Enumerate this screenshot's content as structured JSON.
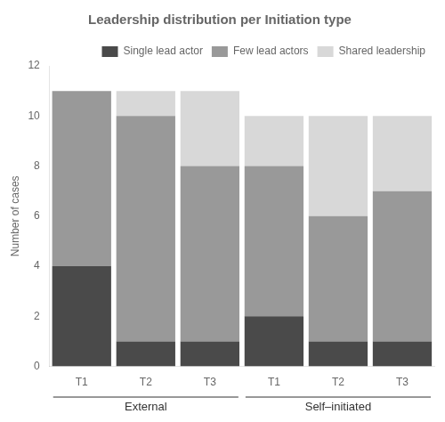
{
  "chart_data": {
    "type": "bar",
    "title": "Leadership distribution per Initiation type",
    "y_label": "Number of cases",
    "categories": [
      "T1",
      "T2",
      "T3",
      "T1",
      "T2",
      "T3"
    ],
    "groups": [
      "External",
      "External",
      "External",
      "Self–initiated",
      "Self–initiated",
      "Self–initiated"
    ],
    "series": [
      {
        "name": "Single lead actor",
        "color": "#4a4a4a",
        "values": [
          4,
          1,
          1,
          2,
          1,
          1
        ]
      },
      {
        "name": "Few lead actors",
        "color": "#999999",
        "values": [
          7,
          9,
          7,
          6,
          5,
          6
        ]
      },
      {
        "name": "Shared leadership",
        "color": "#d8d8d8",
        "values": [
          0,
          1,
          3,
          2,
          4,
          3
        ]
      }
    ],
    "stacked": true,
    "ylim": [
      0,
      12
    ],
    "yticks": [
      0,
      2,
      4,
      6,
      8,
      10,
      12
    ],
    "grid": false,
    "legend": "upper right"
  }
}
